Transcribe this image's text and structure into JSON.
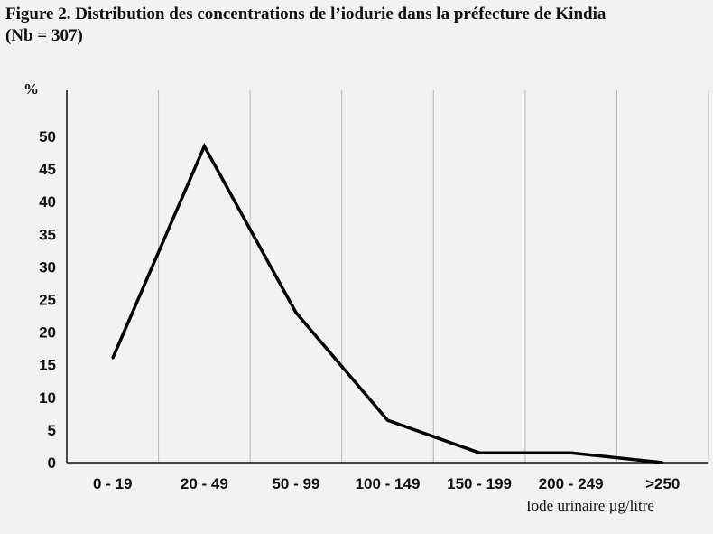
{
  "figure": {
    "title_line1": "Figure 2. Distribution des concentrations de l’iodurie dans la préfecture de Kindia",
    "title_line2": "(Nb = 307)"
  },
  "chart_data": {
    "type": "line",
    "title": "Figure 2. Distribution des concentrations de l’iodurie dans la préfecture de Kindia (Nb = 307)",
    "ylabel": "%",
    "xlabel": "Iode urinaire µg/litre",
    "categories": [
      "0 - 19",
      "20 - 49",
      "50 - 99",
      "100 - 149",
      "150 - 199",
      "200 - 249",
      ">250"
    ],
    "series": [
      {
        "values": [
          16,
          48.5,
          23,
          6.5,
          1.5,
          1.5,
          0
        ]
      }
    ],
    "ylim": [
      0,
      50
    ],
    "yticks": [
      0,
      5,
      10,
      15,
      20,
      25,
      30,
      35,
      40,
      45,
      50
    ],
    "grid": "vertical",
    "line_color": "#000000"
  }
}
